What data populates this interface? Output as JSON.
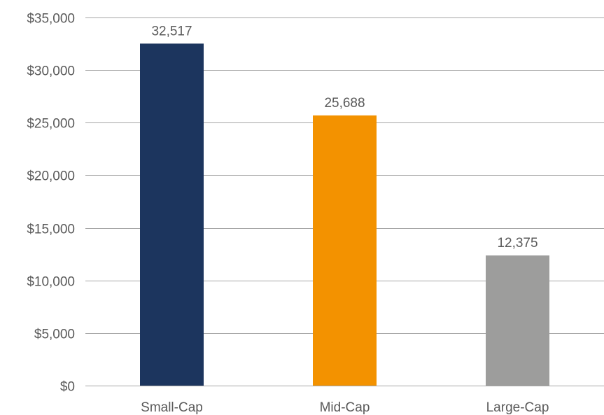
{
  "chart_data": {
    "type": "bar",
    "title": "",
    "xlabel": "",
    "ylabel": "",
    "categories": [
      "Small-Cap",
      "Mid-Cap",
      "Large-Cap"
    ],
    "values": [
      32517,
      25688,
      12375
    ],
    "data_labels": [
      "32,517",
      "25,688",
      "12,375"
    ],
    "colors": [
      "#1c355e",
      "#f39200",
      "#9d9d9c"
    ],
    "ylim": [
      0,
      35000
    ],
    "yticks": [
      0,
      5000,
      10000,
      15000,
      20000,
      25000,
      30000,
      35000
    ],
    "ytick_labels": [
      "$0",
      "$5,000",
      "$10,000",
      "$15,000",
      "$20,000",
      "$25,000",
      "$30,000",
      "$35,000"
    ],
    "grid": true,
    "legend": false
  }
}
